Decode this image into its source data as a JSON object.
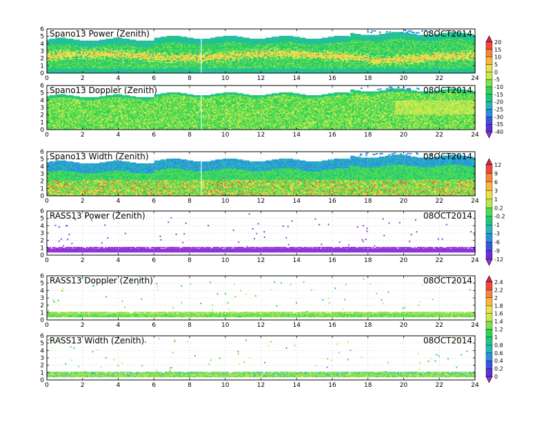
{
  "chart_data": {
    "type": "heatmap",
    "date": "08OCT2014",
    "x_range": [
      0,
      24
    ],
    "x_ticks": [
      0,
      2,
      4,
      6,
      8,
      10,
      12,
      14,
      16,
      18,
      20,
      22,
      24
    ],
    "y_range": [
      0,
      6
    ],
    "y_ticks": [
      0,
      1,
      2,
      3,
      4,
      5,
      6
    ],
    "grid": true,
    "panels": [
      {
        "title": "Spano13 Power (Zenith)",
        "kind": "spano_power",
        "colorbar": 0
      },
      {
        "title": "Spano13 Doppler (Zenith)",
        "kind": "spano_doppler",
        "colorbar": 0
      },
      {
        "title": "Spano13 Width (Zenith)",
        "kind": "spano_width",
        "colorbar": 1
      },
      {
        "title": "RASS13 Power (Zenith)",
        "kind": "rass_power",
        "colorbar": 1
      },
      {
        "title": "RASS13 Doppler (Zenith)",
        "kind": "rass_doppler",
        "colorbar": 2
      },
      {
        "title": "RASS13 Width (Zenith)",
        "kind": "rass_width",
        "colorbar": 2
      }
    ],
    "colorbars": [
      {
        "labels": [
          "20",
          "15",
          "10",
          "5",
          "0",
          "-5",
          "-10",
          "-15",
          "-20",
          "-25",
          "-30",
          "-35",
          "-40"
        ],
        "colors": [
          "#e0204e",
          "#f04a3e",
          "#f7843a",
          "#f9b63c",
          "#eadf4a",
          "#c9ea4f",
          "#7fe050",
          "#2fd454",
          "#20c87a",
          "#24b8b8",
          "#2d8ee0",
          "#3a55e0",
          "#5a32d8",
          "#9a2fd6"
        ]
      },
      {
        "labels": [
          "12",
          "9",
          "6",
          "3",
          "1",
          "0.2",
          "-0.2",
          "-1",
          "-3",
          "-6",
          "-9",
          "-12"
        ],
        "colors": [
          "#e0204e",
          "#f04a3e",
          "#f7843a",
          "#f9b63c",
          "#eadf4a",
          "#b4e84f",
          "#4fdc52",
          "#20c87a",
          "#24b8b8",
          "#2d8ee0",
          "#3a55e0",
          "#6a30d8",
          "#9a2fd6"
        ]
      },
      {
        "labels": [
          "2.4",
          "2.2",
          "2",
          "1.8",
          "1.6",
          "1.4",
          "1.2",
          "1",
          "0.8",
          "0.6",
          "0.4",
          "0.2",
          "0"
        ],
        "colors": [
          "#e0204e",
          "#f04a3e",
          "#f7843a",
          "#f9b63c",
          "#eadf4a",
          "#c9ea4f",
          "#7fe050",
          "#2fd454",
          "#20c87a",
          "#24b8b8",
          "#2d8ee0",
          "#3a55e0",
          "#5a32d8",
          "#9a2fd6"
        ]
      }
    ]
  }
}
